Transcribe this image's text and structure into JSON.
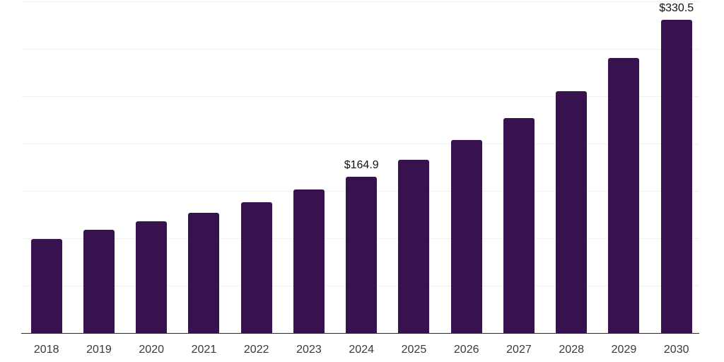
{
  "chart_data": {
    "type": "bar",
    "title": "",
    "xlabel": "",
    "ylabel": "",
    "categories": [
      "2018",
      "2019",
      "2020",
      "2021",
      "2022",
      "2023",
      "2024",
      "2025",
      "2026",
      "2027",
      "2028",
      "2029",
      "2030"
    ],
    "values": [
      99.3,
      109.0,
      117.9,
      127.0,
      137.9,
      151.3,
      164.9,
      182.7,
      203.9,
      226.6,
      255.5,
      290.3,
      330.5
    ],
    "data_labels": [
      {
        "index": 6,
        "text": "$164.9"
      },
      {
        "index": 12,
        "text": "$330.5"
      }
    ],
    "ylim": [
      0,
      350
    ],
    "gridline_step": 50,
    "grid": true,
    "legend": "none",
    "colors": {
      "bar": "#38124E",
      "background": "#ffffff",
      "gridline": "#f0f0f0",
      "axis_line": "#2b2b2b",
      "tick_label": "#3a3a3a",
      "data_label": "#111111"
    }
  }
}
